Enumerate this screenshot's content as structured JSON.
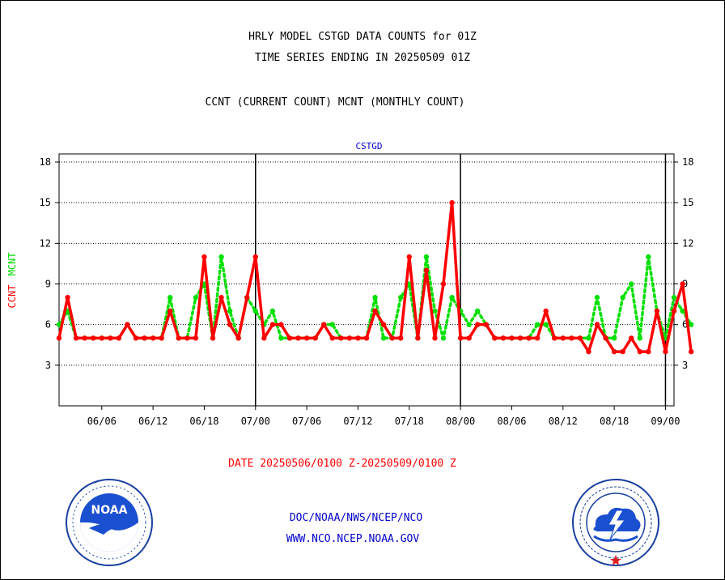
{
  "titles": {
    "line1": "HRLY MODEL CSTGD DATA COUNTS for 01Z",
    "line2": "TIME SERIES ENDING IN 20250509 01Z",
    "line3": "CCNT (CURRENT COUNT) MCNT (MONTHLY COUNT)"
  },
  "footer": {
    "date_range": "DATE 20250506/0100 Z-20250509/0100 Z",
    "credit_line1": "DOC/NOAA/NWS/NCEP/NCO",
    "credit_line2": "WWW.NCO.NCEP.NOAA.GOV"
  },
  "logos": {
    "left": {
      "icon": "noaa-logo",
      "text": "NOAA"
    },
    "right": {
      "icon": "nws-logo"
    }
  },
  "colors": {
    "ccnt": "#ff0000",
    "mcnt": "#00e000",
    "panel_label": "#0000cc",
    "axis": "#000000"
  },
  "chart_data": {
    "type": "line",
    "panel_label": "CSTGD",
    "ylabel_ccnt": "CCNT",
    "ylabel_mcnt": "MCNT",
    "ylim": [
      0,
      18.6
    ],
    "yticks": [
      3,
      6,
      9,
      12,
      15,
      18
    ],
    "grid": true,
    "x_tick_labels": [
      "06/06",
      "06/12",
      "06/18",
      "07/00",
      "07/06",
      "07/12",
      "07/18",
      "08/00",
      "08/06",
      "08/12",
      "08/18",
      "09/00"
    ],
    "x_tick_hours": [
      5,
      11,
      17,
      23,
      29,
      35,
      41,
      47,
      53,
      59,
      65,
      71
    ],
    "day_boundaries_hours": [
      23,
      47,
      71
    ],
    "x_range_hours": [
      0,
      72
    ],
    "series": [
      {
        "name": "CCNT",
        "values": [
          5,
          8,
          5,
          5,
          5,
          5,
          5,
          5,
          6,
          5,
          5,
          5,
          5,
          7,
          5,
          5,
          5,
          11,
          5,
          8,
          6,
          5,
          8,
          11,
          5,
          6,
          6,
          5,
          5,
          5,
          5,
          6,
          5,
          5,
          5,
          5,
          5,
          7,
          6,
          5,
          5,
          11,
          5,
          10,
          5,
          9,
          15,
          5,
          5,
          6,
          6,
          5,
          5,
          5,
          5,
          5,
          5,
          7,
          5,
          5,
          5,
          5,
          4,
          6,
          5,
          4,
          4,
          5,
          4,
          4,
          7,
          4,
          7,
          9,
          4
        ]
      },
      {
        "name": "MCNT",
        "values": [
          6,
          7,
          5,
          5,
          5,
          5,
          5,
          5,
          6,
          5,
          5,
          5,
          5,
          8,
          5,
          5,
          8,
          9,
          5,
          11,
          7,
          5,
          8,
          7,
          6,
          7,
          5,
          5,
          5,
          5,
          5,
          6,
          6,
          5,
          5,
          5,
          5,
          8,
          5,
          5,
          8,
          9,
          5,
          11,
          7,
          5,
          8,
          7,
          6,
          7,
          6,
          5,
          5,
          5,
          5,
          5,
          6,
          6,
          5,
          5,
          5,
          5,
          5,
          8,
          5,
          5,
          8,
          9,
          5,
          11,
          7,
          5,
          8,
          7,
          6
        ]
      }
    ]
  }
}
